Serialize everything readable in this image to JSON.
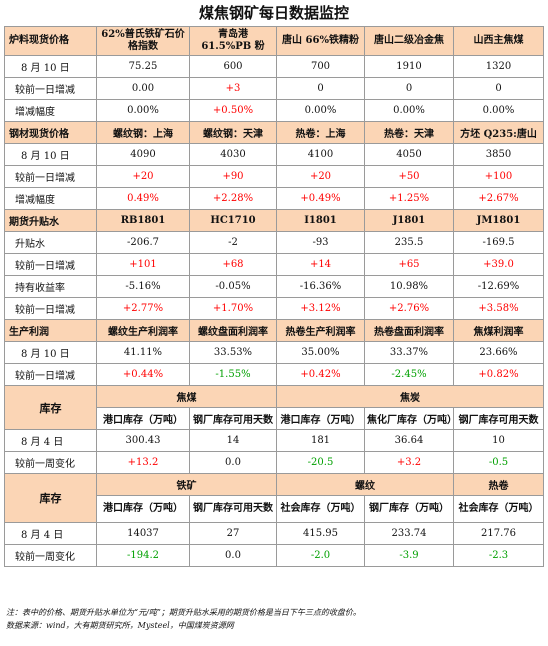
{
  "title": "煤焦钢矿每日数据监控",
  "furnace": {
    "header": [
      "炉料现货价格",
      "62%普氏铁矿石价格指数",
      "青岛港 61.5%PB 粉",
      "唐山 66%铁精粉",
      "唐山二级冶金焦",
      "山西主焦煤"
    ],
    "rows": [
      {
        "label": "8 月 10 日",
        "cells": [
          "75.25",
          "600",
          "700",
          "1910",
          "1320"
        ]
      },
      {
        "label": "较前一日增减",
        "cells": [
          "0.00",
          "+3",
          "0",
          "0",
          "0"
        ]
      },
      {
        "label": "增减幅度",
        "cells": [
          "0.00%",
          "+0.50%",
          "0.00%",
          "0.00%",
          "0.00%"
        ]
      }
    ]
  },
  "steel": {
    "header": [
      "钢材现货价格",
      "螺纹钢：上海",
      "螺纹钢：天津",
      "热卷：上海",
      "热卷：天津",
      "方坯 Q235:唐山"
    ],
    "rows": [
      {
        "label": "8 月 10 日",
        "cells": [
          "4090",
          "4030",
          "4100",
          "4050",
          "3850"
        ]
      },
      {
        "label": "较前一日增减",
        "cells": [
          "+20",
          "+90",
          "+20",
          "+50",
          "+100"
        ]
      },
      {
        "label": "增减幅度",
        "cells": [
          "0.49%",
          "+2.28%",
          "+0.49%",
          "+1.25%",
          "+2.67%"
        ]
      }
    ]
  },
  "futures": {
    "header": [
      "期货升贴水",
      "RB1801",
      "HC1710",
      "I1801",
      "J1801",
      "JM1801"
    ],
    "rows": [
      {
        "label": "升贴水",
        "cells": [
          "-206.7",
          "-2",
          "-93",
          "235.5",
          "-169.5"
        ]
      },
      {
        "label": "较前一日增减",
        "cells": [
          "+101",
          "+68",
          "+14",
          "+65",
          "+39.0"
        ]
      },
      {
        "label": "持有收益率",
        "cells": [
          "-5.16%",
          "-0.05%",
          "-16.36%",
          "10.98%",
          "-12.69%"
        ]
      },
      {
        "label": "较前一日增减",
        "cells": [
          "+2.77%",
          "+1.70%",
          "+3.12%",
          "+2.76%",
          "+3.58%"
        ]
      }
    ]
  },
  "profit": {
    "header": [
      "生产利润",
      "螺纹生产利润率",
      "螺纹盘面利润率",
      "热卷生产利润率",
      "热卷盘面利润率",
      "焦煤利润率"
    ],
    "rows": [
      {
        "label": "8 月 10 日",
        "cells": [
          "41.11%",
          "33.53%",
          "35.00%",
          "33.37%",
          "23.66%"
        ]
      },
      {
        "label": "较前一日增减",
        "cells": [
          "+0.44%",
          "-1.55%",
          "+0.42%",
          "-2.45%",
          "+0.82%"
        ]
      }
    ]
  },
  "stock1": {
    "section": "库存",
    "groups": [
      "焦煤",
      "焦炭"
    ],
    "sub": [
      "港口库存（万吨）",
      "钢厂库存可用天数",
      "港口库存（万吨）",
      "焦化厂库存（万吨）",
      "钢厂库存可用天数"
    ],
    "rows": [
      {
        "label": "8 月 4 日",
        "cells": [
          "300.43",
          "14",
          "181",
          "36.64",
          "10"
        ]
      },
      {
        "label": "较前一周变化",
        "cells": [
          "+13.2",
          "0.0",
          "-20.5",
          "+3.2",
          "-0.5"
        ]
      }
    ]
  },
  "stock2": {
    "section": "库存",
    "groups": [
      "铁矿",
      "螺纹",
      "热卷"
    ],
    "sub": [
      "港口库存（万吨）",
      "钢厂库存可用天数",
      "社会库存（万吨）",
      "钢厂库存（万吨）",
      "社会库存（万吨）"
    ],
    "rows": [
      {
        "label": "8 月 4 日",
        "cells": [
          "14037",
          "27",
          "415.95",
          "233.74",
          "217.76"
        ]
      },
      {
        "label": "较前一周变化",
        "cells": [
          "-194.2",
          "0.0",
          "-2.0",
          "-3.9",
          "-2.3"
        ]
      }
    ]
  },
  "notes": {
    "note": "注：表中的价格、期货升贴水单位为“元/吨”；期货升贴水采用的期货价格是当日下午三点的收盘价。",
    "source": "数据来源：wind，大有期货研究所，Mysteel，中国煤炭资源网"
  },
  "colors": {
    "header_bg": "#fbd5b5",
    "increase": "#ff0000",
    "decrease": "#00a000"
  }
}
